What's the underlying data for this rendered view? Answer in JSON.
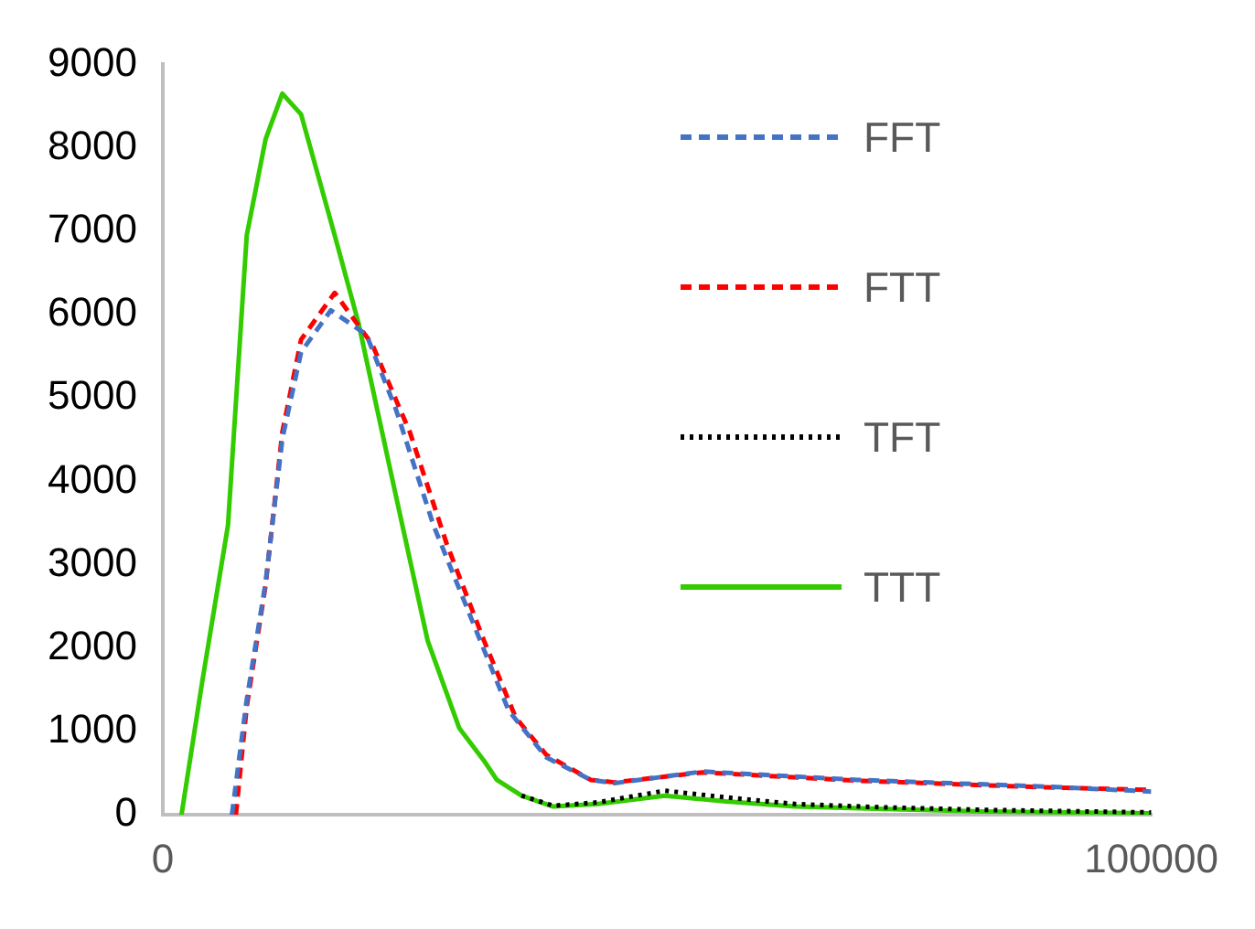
{
  "chart_data": {
    "type": "line",
    "xlim": [
      0,
      100000
    ],
    "xticks": [
      0,
      100000
    ],
    "ylim": [
      0,
      9000
    ],
    "yticks": [
      0,
      1000,
      2000,
      3000,
      4000,
      5000,
      6000,
      7000,
      8000,
      9000
    ],
    "grid": false,
    "legend": "top right",
    "marker": "none",
    "series": [
      {
        "name": "FFT",
        "color": "#4472c4",
        "line_style": "dashed",
        "x": [
          7000,
          8500,
          10400,
          12100,
          14000,
          17000,
          20600,
          23600,
          27400,
          31200,
          35000,
          38800,
          43300,
          45700,
          54600,
          70300,
          89200,
          100000
        ],
        "values": [
          0,
          1380,
          2780,
          4510,
          5550,
          6050,
          5760,
          4860,
          3470,
          2360,
          1250,
          690,
          420,
          380,
          520,
          420,
          340,
          280
        ]
      },
      {
        "name": "FTT",
        "color": "#ff0000",
        "line_style": "dashed",
        "x": [
          7400,
          8500,
          10400,
          12100,
          14000,
          17400,
          21200,
          25000,
          28700,
          32500,
          35700,
          38800,
          43300,
          45700,
          54600,
          70300,
          89200,
          100000
        ],
        "values": [
          0,
          1300,
          2750,
          4590,
          5700,
          6260,
          5640,
          4590,
          3260,
          2090,
          1170,
          720,
          420,
          390,
          510,
          410,
          330,
          300
        ]
      },
      {
        "name": "TFT",
        "color": "#000000",
        "line_style": "dotted",
        "x": [
          36300,
          39500,
          44000,
          50800,
          57000,
          64000,
          73000,
          83000,
          100000
        ],
        "values": [
          230,
          110,
          150,
          290,
          210,
          130,
          90,
          60,
          30
        ]
      },
      {
        "name": "TTT",
        "color": "#33cc00",
        "line_style": "solid",
        "x": [
          1900,
          4000,
          6600,
          8500,
          10400,
          12100,
          14000,
          17400,
          19800,
          23600,
          26800,
          30000,
          32500,
          33800,
          36300,
          39500,
          44000,
          50800,
          57000,
          64000,
          73000,
          83000,
          100000
        ],
        "values": [
          0,
          1600,
          3470,
          6950,
          8100,
          8650,
          8400,
          6950,
          5900,
          3820,
          2090,
          1040,
          650,
          420,
          230,
          100,
          130,
          230,
          160,
          100,
          70,
          40,
          20
        ]
      }
    ]
  }
}
